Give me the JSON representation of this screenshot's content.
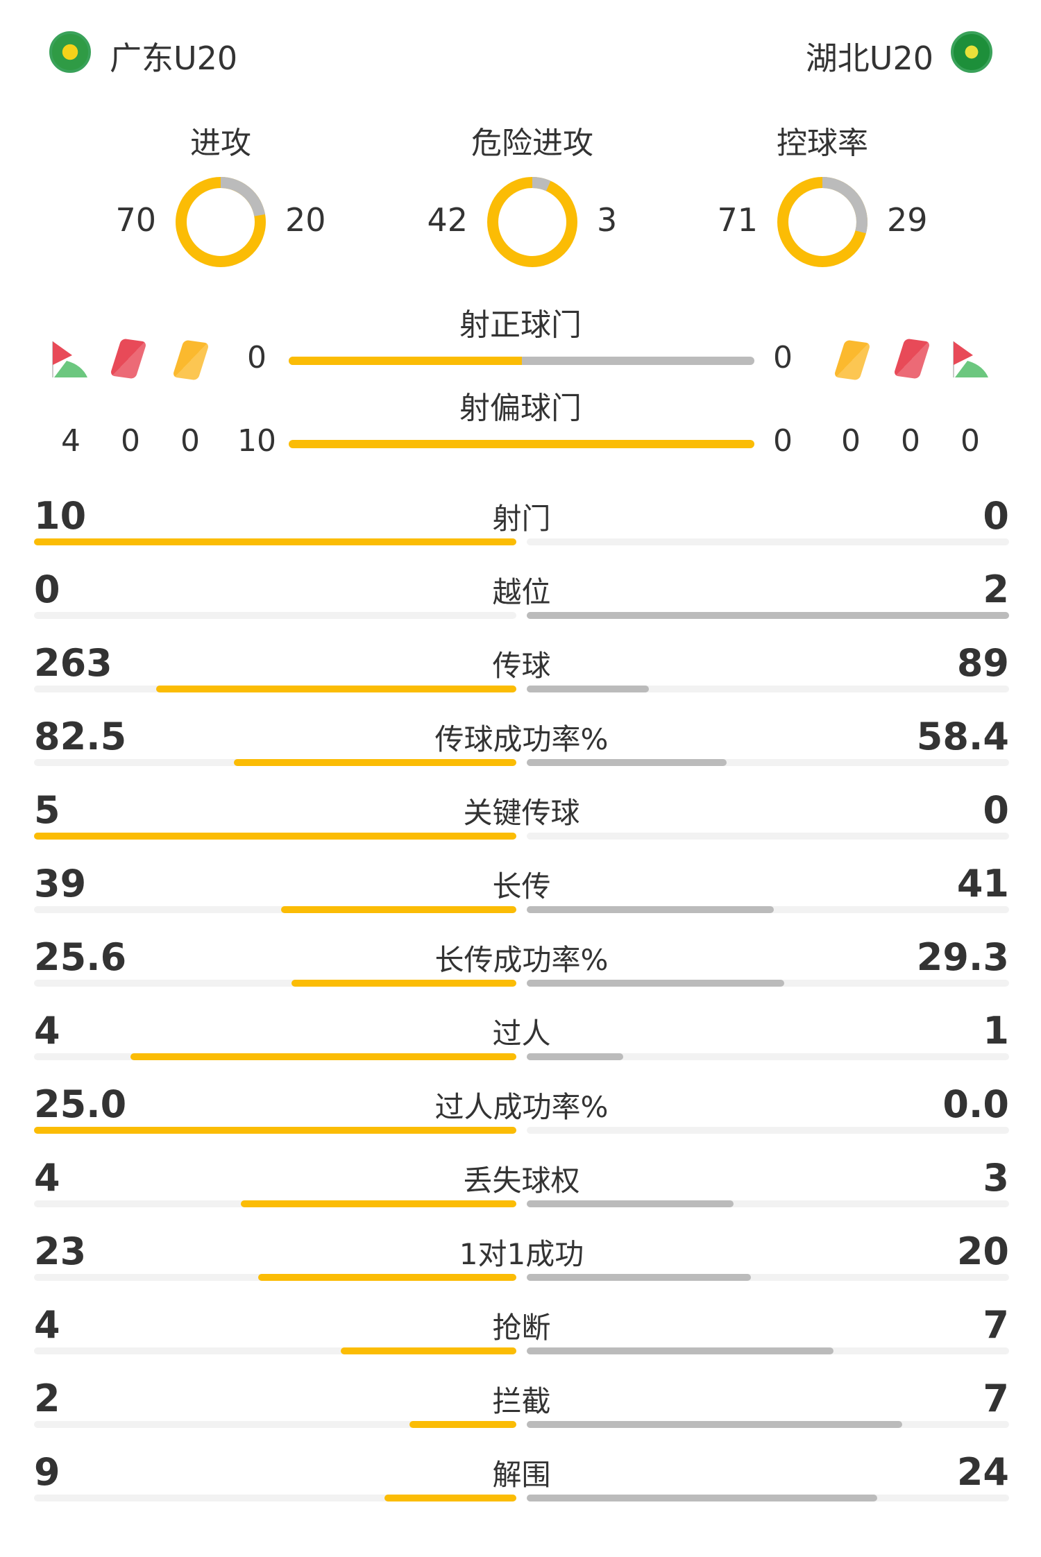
{
  "home": {
    "name": "广东U20"
  },
  "away": {
    "name": "湖北U20"
  },
  "colors": {
    "home": "#fbbc05",
    "away": "#bbbbbb"
  },
  "donuts": [
    {
      "label": "进攻",
      "home": "70",
      "away": "20"
    },
    {
      "label": "危险进攻",
      "home": "42",
      "away": "3"
    },
    {
      "label": "控球率",
      "home": "71",
      "away": "29"
    }
  ],
  "shots_on": {
    "label": "射正球门",
    "home": "0",
    "away": "0"
  },
  "shots_off": {
    "label": "射偏球门",
    "home": "10",
    "away": "0"
  },
  "events": {
    "icons": [
      "corner-flag-icon",
      "red-card-icon",
      "yellow-card-icon"
    ],
    "home": {
      "corners": "4",
      "red": "0",
      "yellow": "0"
    },
    "away": {
      "corners": "0",
      "red": "0",
      "yellow": "0"
    }
  },
  "stats": [
    {
      "label": "射门",
      "home": "10",
      "away": "0"
    },
    {
      "label": "越位",
      "home": "0",
      "away": "2"
    },
    {
      "label": "传球",
      "home": "263",
      "away": "89"
    },
    {
      "label": "传球成功率%",
      "home": "82.5",
      "away": "58.4"
    },
    {
      "label": "关键传球",
      "home": "5",
      "away": "0"
    },
    {
      "label": "长传",
      "home": "39",
      "away": "41"
    },
    {
      "label": "长传成功率%",
      "home": "25.6",
      "away": "29.3"
    },
    {
      "label": "过人",
      "home": "4",
      "away": "1"
    },
    {
      "label": "过人成功率%",
      "home": "25.0",
      "away": "0.0"
    },
    {
      "label": "丢失球权",
      "home": "4",
      "away": "3"
    },
    {
      "label": "1对1成功",
      "home": "23",
      "away": "20"
    },
    {
      "label": "抢断",
      "home": "4",
      "away": "7"
    },
    {
      "label": "拦截",
      "home": "2",
      "away": "7"
    },
    {
      "label": "解围",
      "home": "9",
      "away": "24"
    }
  ]
}
